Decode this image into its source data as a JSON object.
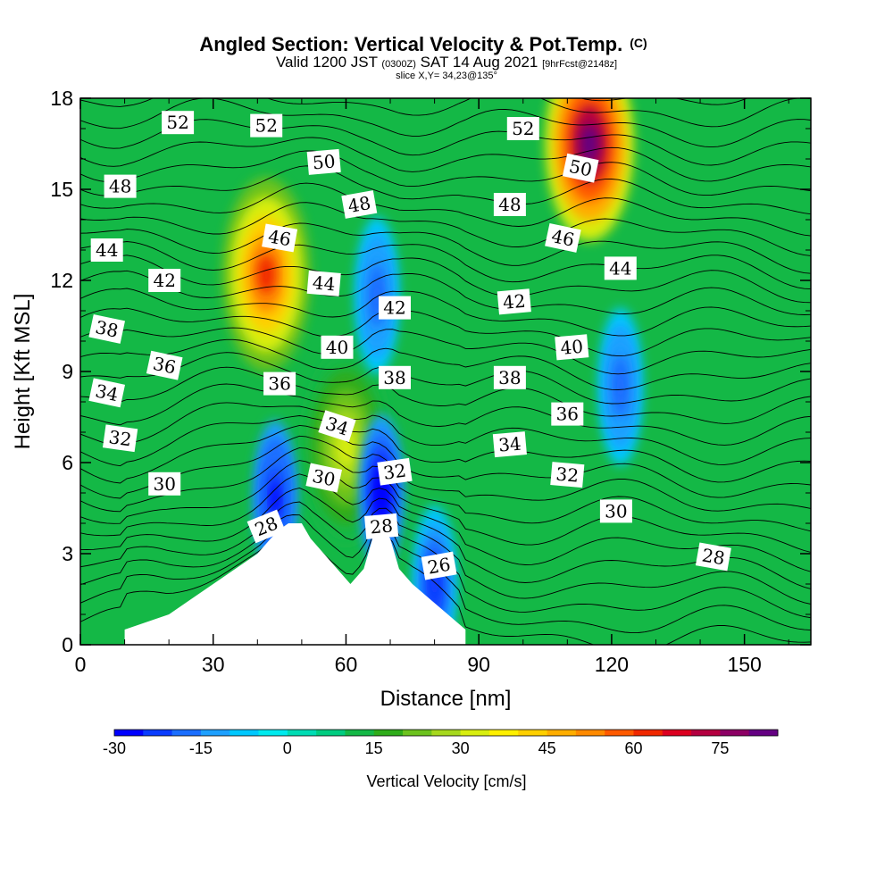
{
  "chart_data": {
    "type": "heatmap",
    "title": "Angled Section: Vertical Velocity & Pot.Temp.",
    "title_unit": "(C)",
    "subtitle_parts": [
      "Valid 1200 JST",
      "(0300Z)",
      "SAT 14 Aug 2021",
      "[9hrFcst@2148z]"
    ],
    "slice_text": "slice X,Y= 34,23@135°",
    "xlabel": "Distance [nm]",
    "ylabel": "Height [Kft MSL]",
    "xlim": [
      0,
      165
    ],
    "ylim": [
      0,
      18
    ],
    "x_ticks": [
      "0",
      "30",
      "60",
      "90",
      "120",
      "150"
    ],
    "y_ticks": [
      "0",
      "3",
      "6",
      "9",
      "12",
      "15",
      "18"
    ],
    "colorbar": {
      "label": "Vertical Velocity [cm/s]",
      "tick_labels": [
        "-30",
        "-15",
        "0",
        "15",
        "30",
        "45",
        "60",
        "75"
      ],
      "min": -30,
      "max": 85,
      "colors": [
        "#0000ff",
        "#0a3cff",
        "#1b6eff",
        "#1ea0ff",
        "#00c8ff",
        "#00eaee",
        "#00dcb4",
        "#00cc80",
        "#14b846",
        "#2eac1a",
        "#6cc21e",
        "#a6d81e",
        "#d8ee10",
        "#fff000",
        "#ffd000",
        "#ffae00",
        "#ff8a00",
        "#ff5a00",
        "#f02800",
        "#dc0020",
        "#b40040",
        "#8c0064",
        "#640082"
      ]
    },
    "vertical_velocity_cores": [
      {
        "sign": "updraft",
        "x_nm": 42,
        "height_kft": 12.2,
        "peak_cm_s": 62
      },
      {
        "sign": "updraft",
        "x_nm": 115,
        "height_kft": 16.5,
        "peak_cm_s": 85
      },
      {
        "sign": "updraft",
        "x_nm": 60,
        "height_kft": 6.5,
        "peak_cm_s": 32
      },
      {
        "sign": "downdraft",
        "x_nm": 44,
        "height_kft": 4.8,
        "peak_cm_s": -28
      },
      {
        "sign": "downdraft",
        "x_nm": 67,
        "height_kft": 11.5,
        "peak_cm_s": -20
      },
      {
        "sign": "downdraft",
        "x_nm": 68,
        "height_kft": 5.0,
        "peak_cm_s": -30
      },
      {
        "sign": "downdraft",
        "x_nm": 122,
        "height_kft": 8.5,
        "peak_cm_s": -20
      },
      {
        "sign": "downdraft",
        "x_nm": 80,
        "height_kft": 2.0,
        "peak_cm_s": -25
      }
    ],
    "terrain_profile": [
      [
        10,
        0.5
      ],
      [
        20,
        1.0
      ],
      [
        25,
        1.5
      ],
      [
        30,
        2.0
      ],
      [
        35,
        2.5
      ],
      [
        40,
        3.0
      ],
      [
        43,
        3.5
      ],
      [
        45,
        3.8
      ],
      [
        47,
        4.0
      ],
      [
        50,
        4.0
      ],
      [
        52,
        3.5
      ],
      [
        55,
        3.0
      ],
      [
        58,
        2.5
      ],
      [
        61,
        2.0
      ],
      [
        64,
        2.5
      ],
      [
        66,
        3.5
      ],
      [
        68,
        3.8
      ],
      [
        70,
        3.5
      ],
      [
        72,
        2.5
      ],
      [
        75,
        2.0
      ],
      [
        79,
        1.5
      ],
      [
        83,
        1.0
      ],
      [
        87,
        0.5
      ]
    ],
    "theta_contour_labels": [
      {
        "text": "52",
        "x_nm": 22,
        "height_kft": 17.2,
        "angle": 0
      },
      {
        "text": "52",
        "x_nm": 42,
        "height_kft": 17.1,
        "angle": 0
      },
      {
        "text": "52",
        "x_nm": 100,
        "height_kft": 17.0,
        "angle": 0
      },
      {
        "text": "50",
        "x_nm": 55,
        "height_kft": 15.9,
        "angle": -5
      },
      {
        "text": "50",
        "x_nm": 113,
        "height_kft": 15.7,
        "angle": 12
      },
      {
        "text": "48",
        "x_nm": 9,
        "height_kft": 15.1,
        "angle": 0
      },
      {
        "text": "48",
        "x_nm": 63,
        "height_kft": 14.5,
        "angle": -10
      },
      {
        "text": "48",
        "x_nm": 97,
        "height_kft": 14.5,
        "angle": 0
      },
      {
        "text": "46",
        "x_nm": 45,
        "height_kft": 13.4,
        "angle": 10
      },
      {
        "text": "46",
        "x_nm": 109,
        "height_kft": 13.4,
        "angle": 12
      },
      {
        "text": "44",
        "x_nm": 6,
        "height_kft": 13.0,
        "angle": 0
      },
      {
        "text": "44",
        "x_nm": 55,
        "height_kft": 11.9,
        "angle": 5
      },
      {
        "text": "44",
        "x_nm": 122,
        "height_kft": 12.4,
        "angle": 0
      },
      {
        "text": "42",
        "x_nm": 19,
        "height_kft": 12.0,
        "angle": 0
      },
      {
        "text": "42",
        "x_nm": 71,
        "height_kft": 11.1,
        "angle": 0
      },
      {
        "text": "42",
        "x_nm": 98,
        "height_kft": 11.3,
        "angle": -5
      },
      {
        "text": "40",
        "x_nm": 58,
        "height_kft": 9.8,
        "angle": 0
      },
      {
        "text": "40",
        "x_nm": 111,
        "height_kft": 9.8,
        "angle": -5
      },
      {
        "text": "38",
        "x_nm": 6,
        "height_kft": 10.4,
        "angle": 12
      },
      {
        "text": "38",
        "x_nm": 71,
        "height_kft": 8.8,
        "angle": 0
      },
      {
        "text": "38",
        "x_nm": 97,
        "height_kft": 8.8,
        "angle": 0
      },
      {
        "text": "36",
        "x_nm": 19,
        "height_kft": 9.2,
        "angle": 12
      },
      {
        "text": "36",
        "x_nm": 45,
        "height_kft": 8.6,
        "angle": 0
      },
      {
        "text": "36",
        "x_nm": 110,
        "height_kft": 7.6,
        "angle": 0
      },
      {
        "text": "34",
        "x_nm": 6,
        "height_kft": 8.3,
        "angle": 12
      },
      {
        "text": "34",
        "x_nm": 58,
        "height_kft": 7.2,
        "angle": 18
      },
      {
        "text": "34",
        "x_nm": 97,
        "height_kft": 6.6,
        "angle": -5
      },
      {
        "text": "32",
        "x_nm": 9,
        "height_kft": 6.8,
        "angle": 8
      },
      {
        "text": "32",
        "x_nm": 71,
        "height_kft": 5.7,
        "angle": -8
      },
      {
        "text": "32",
        "x_nm": 110,
        "height_kft": 5.6,
        "angle": 5
      },
      {
        "text": "30",
        "x_nm": 19,
        "height_kft": 5.3,
        "angle": 0
      },
      {
        "text": "30",
        "x_nm": 55,
        "height_kft": 5.5,
        "angle": 12
      },
      {
        "text": "30",
        "x_nm": 121,
        "height_kft": 4.4,
        "angle": 0
      },
      {
        "text": "28",
        "x_nm": 42,
        "height_kft": 3.9,
        "angle": -22
      },
      {
        "text": "28",
        "x_nm": 68,
        "height_kft": 3.9,
        "angle": -5
      },
      {
        "text": "28",
        "x_nm": 143,
        "height_kft": 2.9,
        "angle": 10
      },
      {
        "text": "26",
        "x_nm": 81,
        "height_kft": 2.6,
        "angle": -10
      }
    ]
  }
}
